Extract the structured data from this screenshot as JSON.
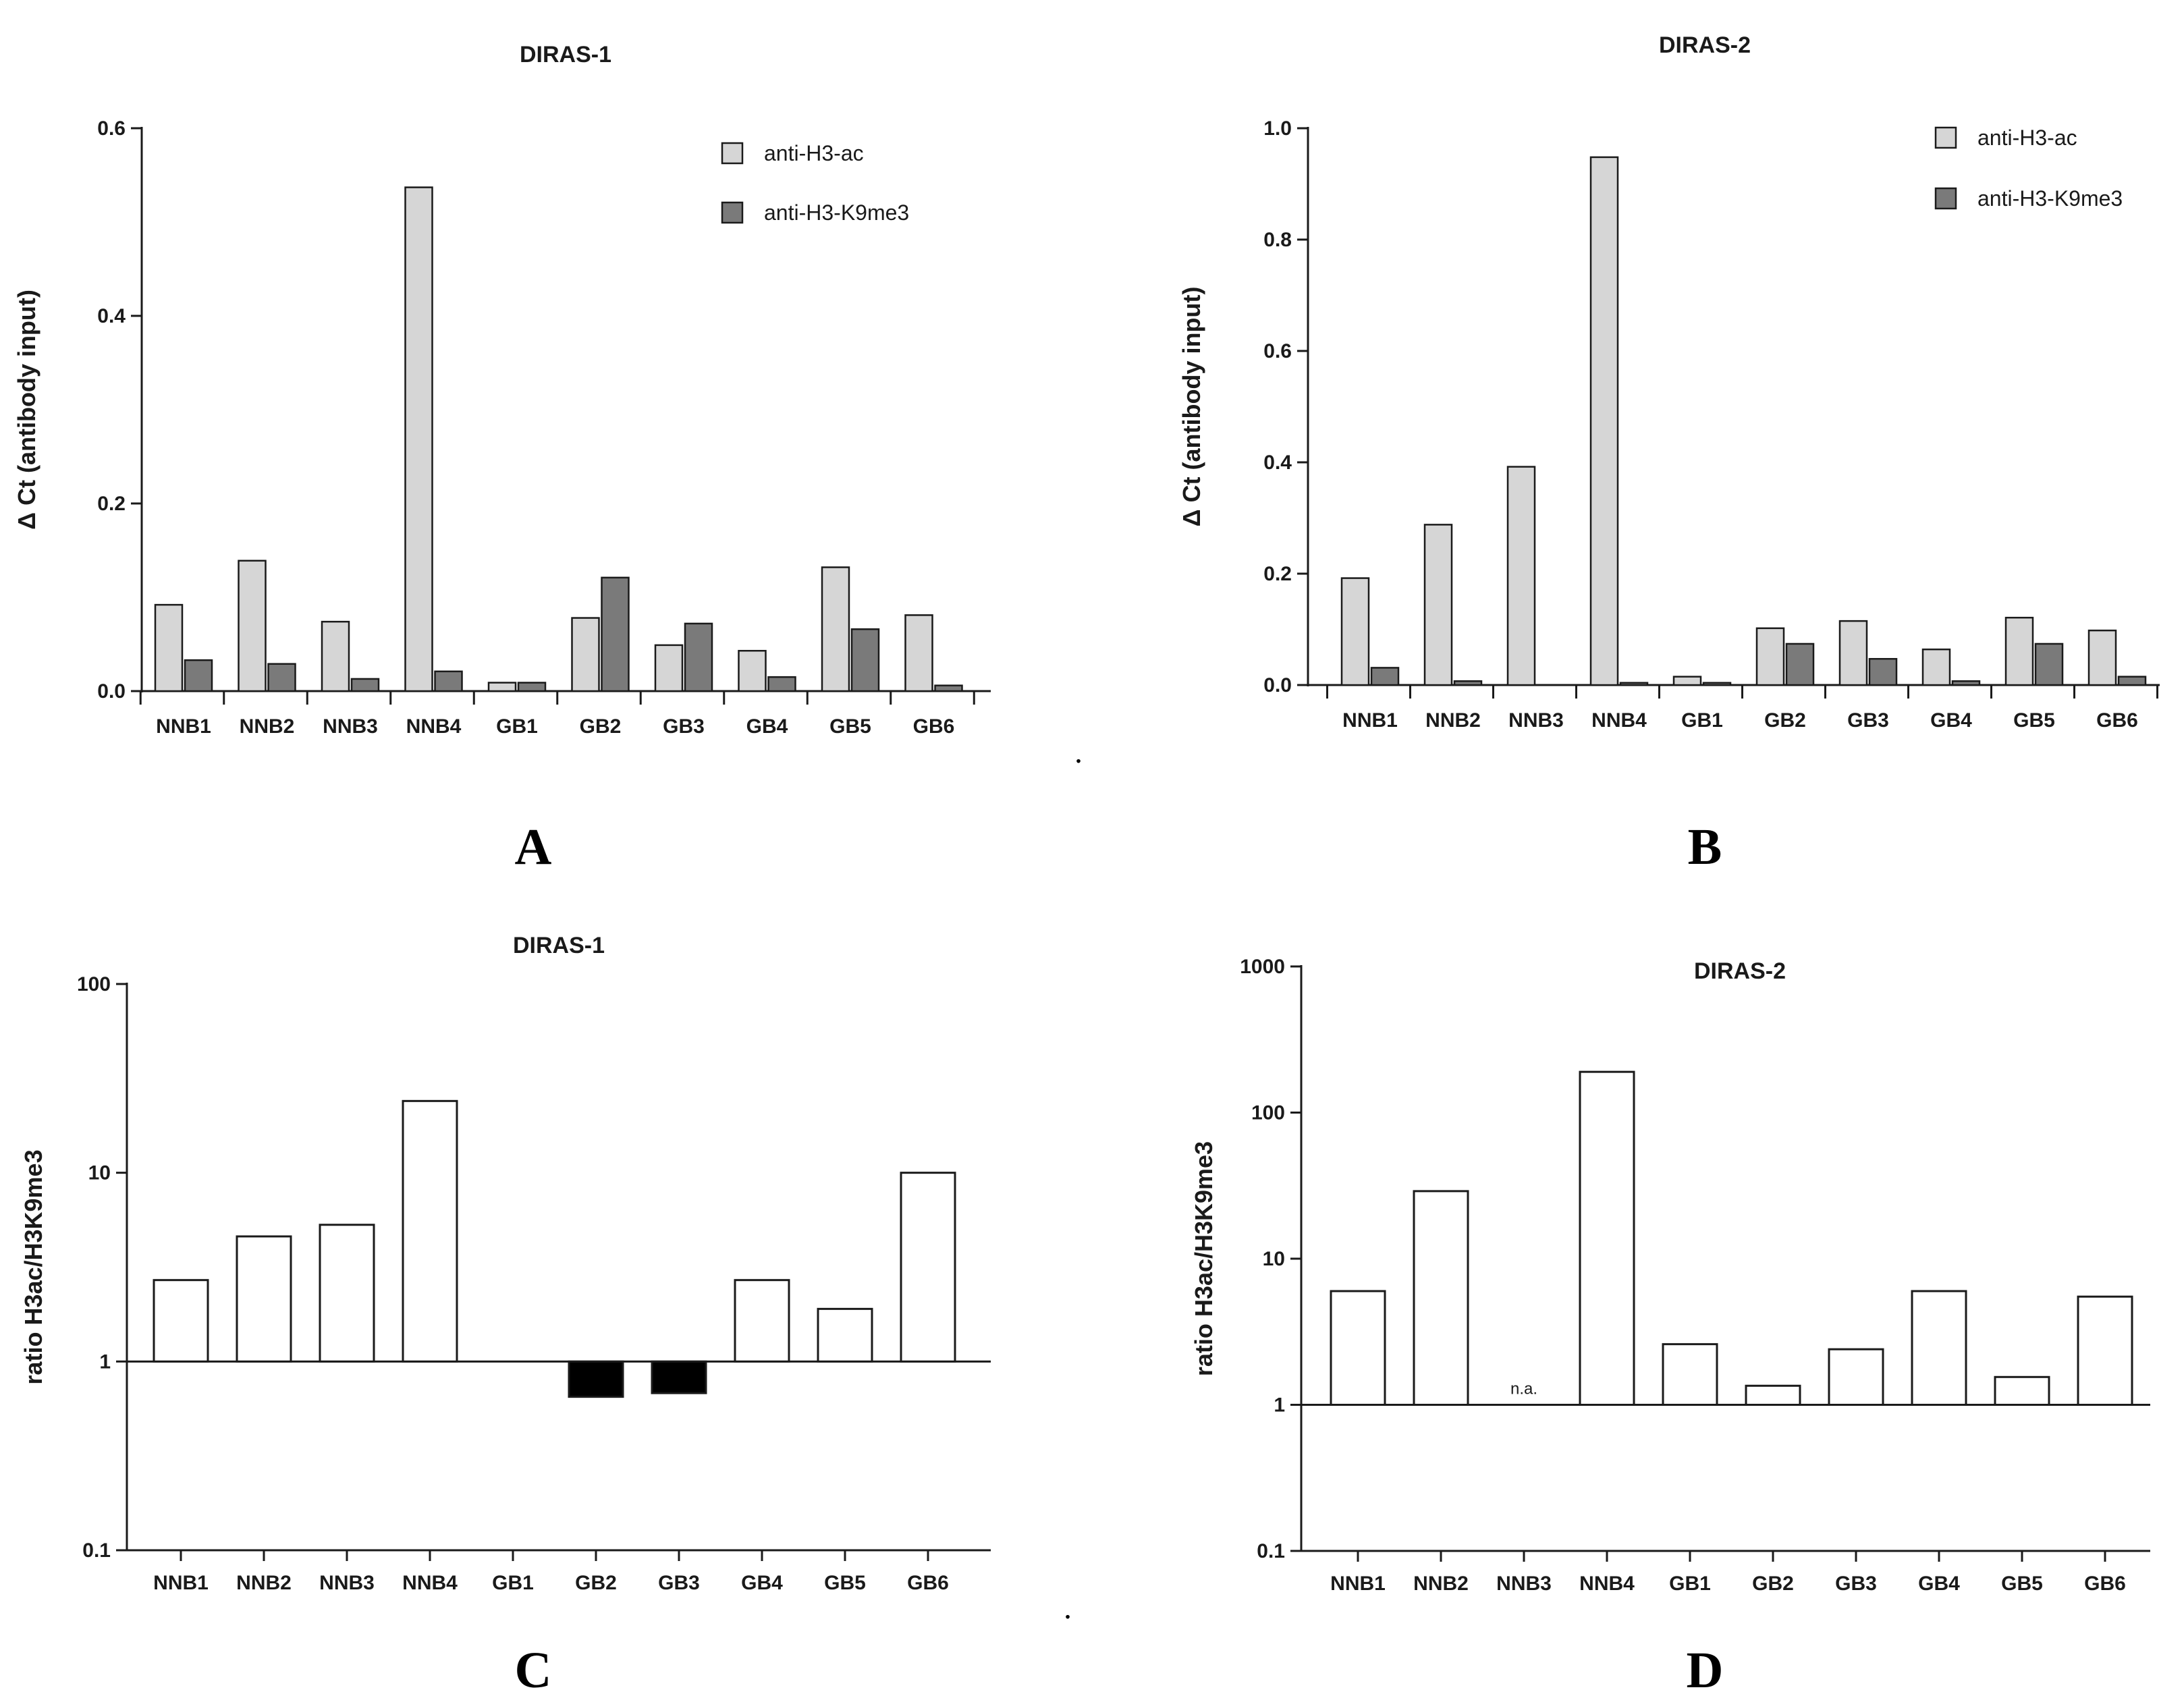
{
  "chart_data": [
    {
      "id": "A",
      "type": "bar",
      "title": "DIRAS-1",
      "panel_label": "A",
      "ylabel": "Δ Ct (antibody input)",
      "ylim": [
        0,
        0.6
      ],
      "yticks": [
        "0.0",
        "0.2",
        "0.4",
        "0.6"
      ],
      "scale": "linear",
      "categories": [
        "NNB1",
        "NNB2",
        "NNB3",
        "NNB4",
        "GB1",
        "GB2",
        "GB3",
        "GB4",
        "GB5",
        "GB6"
      ],
      "series": [
        {
          "name": "anti-H3-ac",
          "color": "#d6d6d6",
          "values": [
            0.092,
            0.139,
            0.074,
            0.537,
            0.009,
            0.078,
            0.049,
            0.043,
            0.132,
            0.081
          ]
        },
        {
          "name": "anti-H3-K9me3",
          "color": "#7a7a7a",
          "values": [
            0.033,
            0.029,
            0.013,
            0.021,
            0.009,
            0.121,
            0.072,
            0.015,
            0.066,
            0.006
          ]
        }
      ],
      "legend": "top-right"
    },
    {
      "id": "B",
      "type": "bar",
      "title": "DIRAS-2",
      "panel_label": "B",
      "ylabel": "Δ Ct (antibody input)",
      "ylim": [
        0,
        1.0
      ],
      "yticks": [
        "0.0",
        "0.2",
        "0.4",
        "0.6",
        "0.8",
        "1.0"
      ],
      "scale": "linear",
      "categories": [
        "NNB1",
        "NNB2",
        "NNB3",
        "NNB4",
        "GB1",
        "GB2",
        "GB3",
        "GB4",
        "GB5",
        "GB6"
      ],
      "series": [
        {
          "name": "anti-H3-ac",
          "color": "#d6d6d6",
          "values": [
            0.192,
            0.288,
            0.392,
            0.948,
            0.015,
            0.102,
            0.115,
            0.064,
            0.121,
            0.098
          ]
        },
        {
          "name": "anti-H3-K9me3",
          "color": "#7a7a7a",
          "values": [
            0.031,
            0.007,
            0.0,
            0.004,
            0.004,
            0.074,
            0.047,
            0.007,
            0.074,
            0.015
          ]
        }
      ],
      "legend": "top-right"
    },
    {
      "id": "C",
      "type": "bar",
      "title": "DIRAS-1",
      "panel_label": "C",
      "ylabel": "ratio H3ac/H3K9me3",
      "ylim": [
        0.1,
        100
      ],
      "yticks": [
        "0.1",
        "1",
        "10",
        "100"
      ],
      "scale": "log",
      "baseline": 1,
      "categories": [
        "NNB1",
        "NNB2",
        "NNB3",
        "NNB4",
        "GB1",
        "GB2",
        "GB3",
        "GB4",
        "GB5",
        "GB6"
      ],
      "values": [
        2.7,
        4.6,
        5.3,
        24,
        1.0,
        0.65,
        0.68,
        2.7,
        1.9,
        10
      ]
    },
    {
      "id": "D",
      "type": "bar",
      "title": "DIRAS-2",
      "panel_label": "D",
      "ylabel": "ratio H3ac/H3K9me3",
      "ylim": [
        0.1,
        1000
      ],
      "yticks": [
        "0.1",
        "1",
        "10",
        "100",
        "1000"
      ],
      "scale": "log",
      "baseline": 1,
      "categories": [
        "NNB1",
        "NNB2",
        "NNB3",
        "NNB4",
        "GB1",
        "GB2",
        "GB3",
        "GB4",
        "GB5",
        "GB6"
      ],
      "values": [
        6.0,
        29,
        null,
        190,
        2.6,
        1.35,
        2.4,
        6.0,
        1.55,
        5.5
      ],
      "annotations": [
        {
          "category": "NNB3",
          "text": "n.a."
        }
      ]
    }
  ],
  "separators": [
    "."
  ],
  "colors": {
    "positive_bar": "#ffffff",
    "negative_bar": "#000000",
    "axis": "#1a1a1a"
  }
}
